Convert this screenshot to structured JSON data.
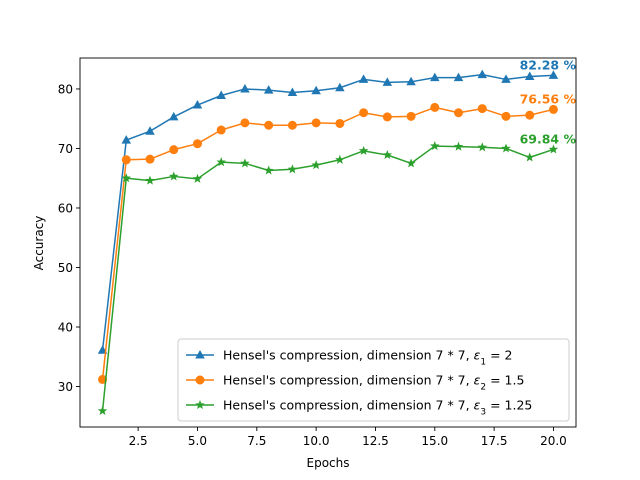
{
  "chart_data": {
    "type": "line",
    "title": "",
    "xlabel": "Epochs",
    "ylabel": "Accuracy",
    "xlim": [
      0.05,
      20.95
    ],
    "ylim": [
      23.2,
      85.2
    ],
    "xticks": [
      2.5,
      5.0,
      7.5,
      10.0,
      12.5,
      15.0,
      17.5,
      20.0
    ],
    "xtick_labels": [
      "2.5",
      "5.0",
      "7.5",
      "10.0",
      "12.5",
      "15.0",
      "17.5",
      "20.0"
    ],
    "yticks": [
      30,
      40,
      50,
      60,
      70,
      80
    ],
    "ytick_labels": [
      "30",
      "40",
      "50",
      "60",
      "70",
      "80"
    ],
    "grid": false,
    "legend_position": "lower-right",
    "x": [
      1,
      2,
      3,
      4,
      5,
      6,
      7,
      8,
      9,
      10,
      11,
      12,
      13,
      14,
      15,
      16,
      17,
      18,
      19,
      20
    ],
    "series": [
      {
        "name": "Hensel's compression, dimension 7 * 7, ε1 = 2",
        "legend_prefix": "Hensel's compression, dimension 7 * 7, ",
        "legend_symbol": "ε",
        "legend_sub": "1",
        "legend_suffix": " = 2",
        "color": "#1f77b4",
        "marker": "triangle",
        "values": [
          36.1,
          71.4,
          72.9,
          75.3,
          77.3,
          78.9,
          80.0,
          79.8,
          79.4,
          79.7,
          80.2,
          81.6,
          81.1,
          81.2,
          81.9,
          81.9,
          82.4,
          81.6,
          82.1,
          82.28
        ],
        "end_label": "82.28 %"
      },
      {
        "name": "Hensel's compression, dimension 7 * 7, ε2 = 1.5",
        "legend_prefix": "Hensel's compression, dimension 7 * 7, ",
        "legend_symbol": "ε",
        "legend_sub": "2",
        "legend_suffix": " = 1.5",
        "color": "#ff7f0e",
        "marker": "circle",
        "values": [
          31.2,
          68.1,
          68.2,
          69.8,
          70.8,
          73.1,
          74.3,
          73.9,
          73.9,
          74.3,
          74.2,
          76.0,
          75.3,
          75.4,
          76.9,
          76.0,
          76.7,
          75.4,
          75.6,
          76.56
        ],
        "end_label": "76.56 %"
      },
      {
        "name": "Hensel's compression, dimension 7 * 7, ε3 = 1.25",
        "legend_prefix": "Hensel's compression, dimension 7 * 7, ",
        "legend_symbol": "ε",
        "legend_sub": "3",
        "legend_suffix": " = 1.25",
        "color": "#2ca02c",
        "marker": "star",
        "values": [
          25.9,
          65.0,
          64.6,
          65.3,
          64.9,
          67.7,
          67.5,
          66.3,
          66.5,
          67.2,
          68.1,
          69.6,
          68.9,
          67.5,
          70.4,
          70.3,
          70.2,
          70.0,
          68.5,
          69.84
        ],
        "end_label": "69.84 %"
      }
    ]
  }
}
